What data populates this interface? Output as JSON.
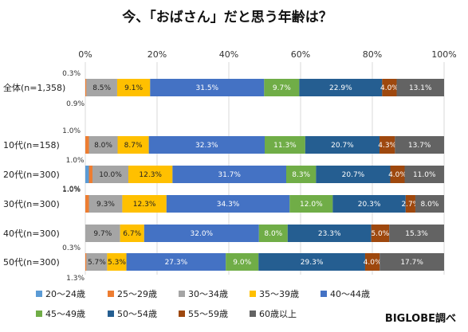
{
  "chart_data": {
    "type": "bar",
    "orientation": "horizontal",
    "stacked": true,
    "title": "今、「おばさん」だと思う年齢は？",
    "source": "BIGLOBE調べ",
    "x_ticks": [
      "0%",
      "20%",
      "40%",
      "60%",
      "80%",
      "100%"
    ],
    "xlim": [
      0,
      100
    ],
    "grid": true,
    "legend_position": "bottom",
    "categories": [
      "全体(n=1,358)",
      "10代(n=158)",
      "20代(n=300)",
      "30代(n=300)",
      "40代(n=300)",
      "50代(n=300)"
    ],
    "series": [
      {
        "name": "20～24歳",
        "color": "#5b9bd5",
        "values": [
          0.0,
          0.0,
          1.0,
          0.0,
          0.0,
          0.0
        ]
      },
      {
        "name": "25～29歳",
        "color": "#ed7d31",
        "values": [
          0.3,
          1.0,
          1.0,
          1.0,
          0.0,
          0.3
        ]
      },
      {
        "name": "30～34歳",
        "color": "#a5a5a5",
        "values": [
          8.5,
          8.0,
          10.0,
          9.3,
          9.7,
          5.7
        ]
      },
      {
        "name": "35～39歳",
        "color": "#ffc000",
        "values": [
          9.1,
          8.7,
          12.3,
          12.3,
          6.7,
          5.3
        ]
      },
      {
        "name": "40～44歳",
        "color": "#4472c4",
        "values": [
          31.5,
          32.3,
          31.7,
          34.3,
          32.0,
          27.3
        ]
      },
      {
        "name": "45～49歳",
        "color": "#70ad47",
        "values": [
          9.7,
          11.3,
          8.3,
          12.0,
          8.0,
          9.0
        ]
      },
      {
        "name": "50～54歳",
        "color": "#255e91",
        "values": [
          22.9,
          20.7,
          20.7,
          20.3,
          23.3,
          29.3
        ]
      },
      {
        "name": "55～59歳",
        "color": "#9e480e",
        "values": [
          4.0,
          4.3,
          4.0,
          2.7,
          5.0,
          4.0
        ]
      },
      {
        "name": "60歳以上",
        "color": "#636363",
        "values": [
          13.1,
          13.7,
          11.0,
          8.0,
          15.3,
          17.7
        ]
      }
    ],
    "labels": [
      [
        "",
        "0.3%",
        "8.5%",
        "9.1%",
        "31.5%",
        "9.7%",
        "22.9%",
        "4.0%",
        "13.1%"
      ],
      [
        "",
        "1.0%",
        "8.0%",
        "8.7%",
        "32.3%",
        "11.3%",
        "20.7%",
        "4.3%",
        "13.7%"
      ],
      [
        "1.0%",
        "1.0%",
        "10.0%",
        "12.3%",
        "31.7%",
        "8.3%",
        "20.7%",
        "4.0%",
        "11.0%"
      ],
      [
        "",
        "1.0%",
        "9.3%",
        "12.3%",
        "34.3%",
        "12.0%",
        "20.3%",
        "2.7%",
        "8.0%"
      ],
      [
        "",
        "",
        "9.7%",
        "6.7%",
        "32.0%",
        "8.0%",
        "23.3%",
        "5.0%",
        "15.3%"
      ],
      [
        "",
        "0.3%",
        "5.7%",
        "5.3%",
        "27.3%",
        "9.0%",
        "29.3%",
        "4.0%",
        "17.7%"
      ]
    ],
    "extra_labels": [
      {
        "row": 0,
        "text": "0.9%"
      },
      {
        "row": 5,
        "text": "1.3%"
      }
    ]
  }
}
